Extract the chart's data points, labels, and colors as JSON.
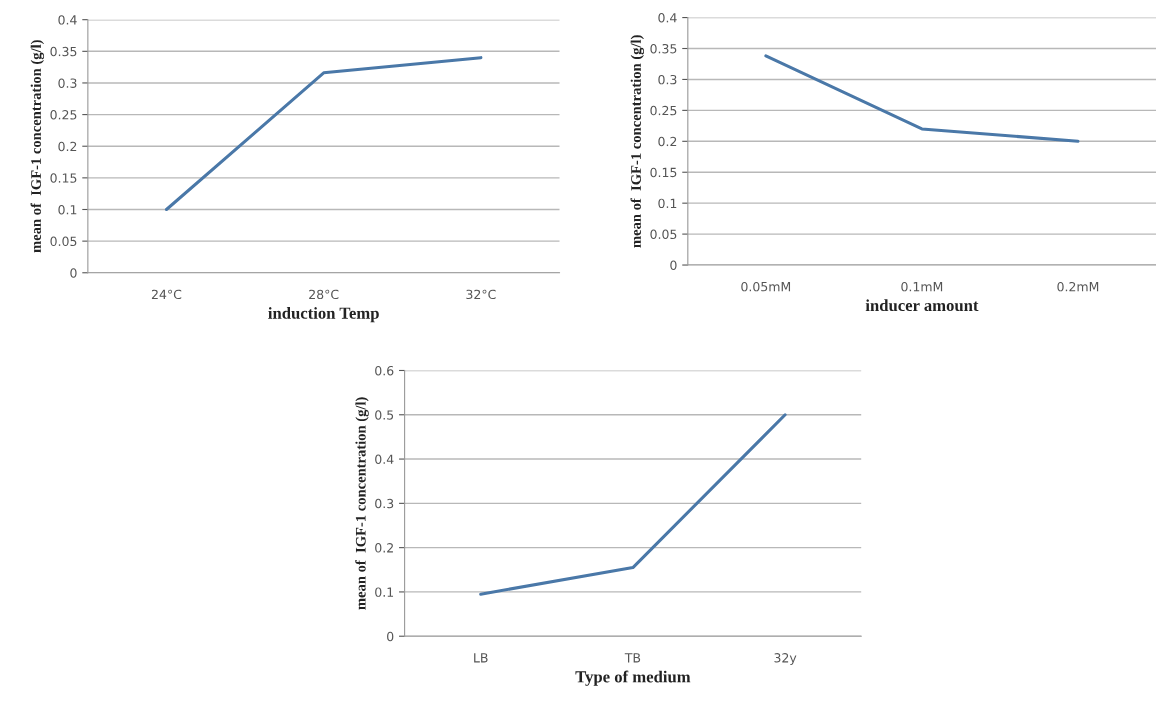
{
  "chart_data": [
    {
      "type": "line",
      "xlabel": "induction Temp",
      "ylabel": "mean of  IGF-1 concentration (g/l)",
      "categories": [
        "24°C",
        "28°C",
        "32°C"
      ],
      "series": [
        {
          "color": "#4a78a8",
          "values": [
            0.1,
            0.316,
            0.34
          ]
        }
      ],
      "ylim": [
        0,
        0.4
      ],
      "yticks": [
        0,
        0.05,
        0.1,
        0.15,
        0.2,
        0.25,
        0.3,
        0.35,
        0.4
      ],
      "grid": "y"
    },
    {
      "type": "line",
      "xlabel": "inducer amount",
      "ylabel": "mean of  IGF-1 concentration (g/l)",
      "categories": [
        "0.05mM",
        "0.1mM",
        "0.2mM"
      ],
      "series": [
        {
          "color": "#4a78a8",
          "values": [
            0.338,
            0.22,
            0.2
          ]
        }
      ],
      "ylim": [
        0,
        0.4
      ],
      "yticks": [
        0,
        0.05,
        0.1,
        0.15,
        0.2,
        0.25,
        0.3,
        0.35,
        0.4
      ],
      "grid": "y"
    },
    {
      "type": "line",
      "xlabel": "Type of medium",
      "ylabel": "mean of  IGF-1 concentration (g/l)",
      "categories": [
        "LB",
        "TB",
        "32y"
      ],
      "series": [
        {
          "color": "#4a78a8",
          "values": [
            0.095,
            0.155,
            0.5
          ]
        }
      ],
      "ylim": [
        0,
        0.6
      ],
      "yticks": [
        0,
        0.1,
        0.2,
        0.3,
        0.4,
        0.5,
        0.6
      ],
      "grid": "y"
    }
  ]
}
